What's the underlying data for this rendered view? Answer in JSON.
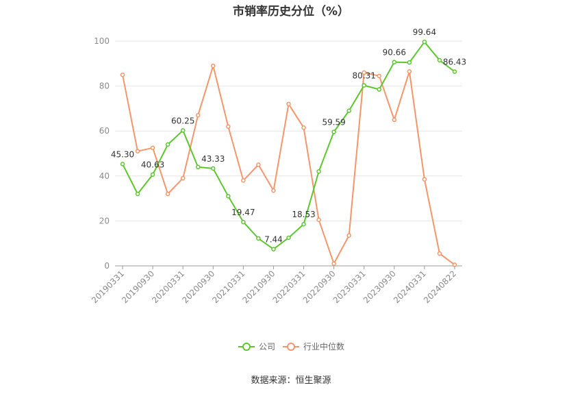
{
  "title": "市销率历史分位（%）",
  "source": "数据来源：恒生聚源",
  "chart_data": {
    "type": "line",
    "x": [
      "20190331",
      "20190630",
      "20190930",
      "20191231",
      "20200331",
      "20200630",
      "20200930",
      "20201231",
      "20210331",
      "20210630",
      "20210930",
      "20211231",
      "20220331",
      "20220630",
      "20220930",
      "20221231",
      "20230331",
      "20230630",
      "20230930",
      "20231231",
      "20240331",
      "20240630",
      "20240822"
    ],
    "x_tick_labels": [
      "20190331",
      "20190930",
      "20200331",
      "20200930",
      "20210331",
      "20210930",
      "20220331",
      "20220930",
      "20230331",
      "20230930",
      "20240331",
      "20240822"
    ],
    "ylim": [
      0,
      100
    ],
    "yticks": [
      0,
      20,
      40,
      60,
      80,
      100
    ],
    "grid": true,
    "legend_position": "bottom",
    "series": [
      {
        "name": "公司",
        "color": "#5cc62c",
        "values": [
          45.3,
          32.0,
          40.63,
          54.0,
          60.25,
          44.0,
          43.33,
          31.0,
          19.47,
          12.2,
          7.44,
          12.5,
          18.53,
          42.0,
          59.59,
          69.0,
          80.31,
          78.5,
          90.66,
          90.5,
          99.64,
          91.5,
          86.43
        ],
        "labels": {
          "0": "45.30",
          "2": "40.63",
          "4": "60.25",
          "6": "43.33",
          "8": "19.47",
          "10": "7.44",
          "12": "18.53",
          "14": "59.59",
          "16": "80.31",
          "18": "90.66",
          "20": "99.64",
          "22": "86.43"
        }
      },
      {
        "name": "行业中位数",
        "color": "#f4956a",
        "values": [
          85.0,
          51.0,
          52.5,
          32.0,
          39.0,
          67.0,
          89.0,
          62.0,
          38.0,
          45.0,
          33.5,
          72.0,
          61.5,
          20.5,
          1.0,
          13.5,
          86.0,
          84.5,
          65.0,
          86.5,
          38.5,
          5.5,
          0.5
        ]
      }
    ]
  }
}
